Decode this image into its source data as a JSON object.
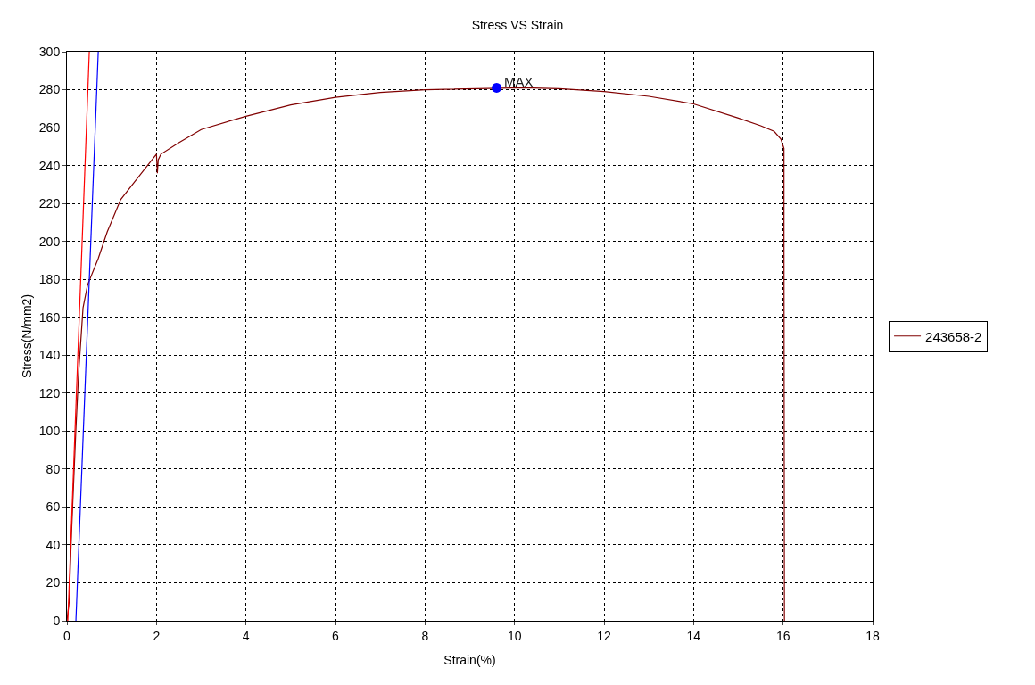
{
  "chart_data": {
    "type": "line",
    "title": "Stress VS Strain",
    "xlabel": "Strain(%)",
    "ylabel": "Stress(N/mm2)",
    "xlim": [
      0,
      18
    ],
    "xticks": [
      0,
      2,
      4,
      6,
      8,
      10,
      12,
      14,
      16,
      18
    ],
    "ylim": [
      0,
      300
    ],
    "yticks": [
      0,
      20,
      40,
      60,
      80,
      100,
      120,
      140,
      160,
      180,
      200,
      220,
      240,
      260,
      280,
      300
    ],
    "grid": true,
    "legend": "right",
    "marker": "none",
    "line_style": "solid",
    "series": [
      {
        "name": "243658-2",
        "color": "#800000",
        "x": [
          0.0,
          0.05,
          0.1,
          0.2,
          0.26,
          0.36,
          0.46,
          0.7,
          0.9,
          1.2,
          1.5,
          2.0,
          2.02,
          2.04,
          2.1,
          2.5,
          3,
          4,
          5,
          6,
          7,
          8,
          10.2,
          11,
          12,
          13,
          14,
          15,
          15.5,
          15.8,
          15.95,
          16.02,
          16.02,
          16.03
        ],
        "values": [
          0,
          10,
          45,
          101,
          130,
          165,
          177,
          191,
          205,
          222,
          231,
          246,
          236,
          243,
          246,
          252,
          259,
          266,
          272,
          276,
          278.5,
          280,
          281,
          280.5,
          279,
          276.5,
          272.5,
          265,
          261,
          258,
          254,
          249,
          200,
          0
        ]
      },
      {
        "color": "#ff0000",
        "x": [
          0.02,
          0.5
        ],
        "values": [
          0,
          300
        ]
      },
      {
        "color": "#0000ff",
        "x": [
          0.2,
          0.7
        ],
        "values": [
          0,
          300
        ]
      },
      {
        "type": "scatter",
        "marker": "circle",
        "color": "#0000ff",
        "x": [
          9.6
        ],
        "values": [
          281
        ]
      }
    ],
    "annotations": [
      {
        "text": "MAX",
        "x": 9.6,
        "y": 281
      }
    ]
  }
}
